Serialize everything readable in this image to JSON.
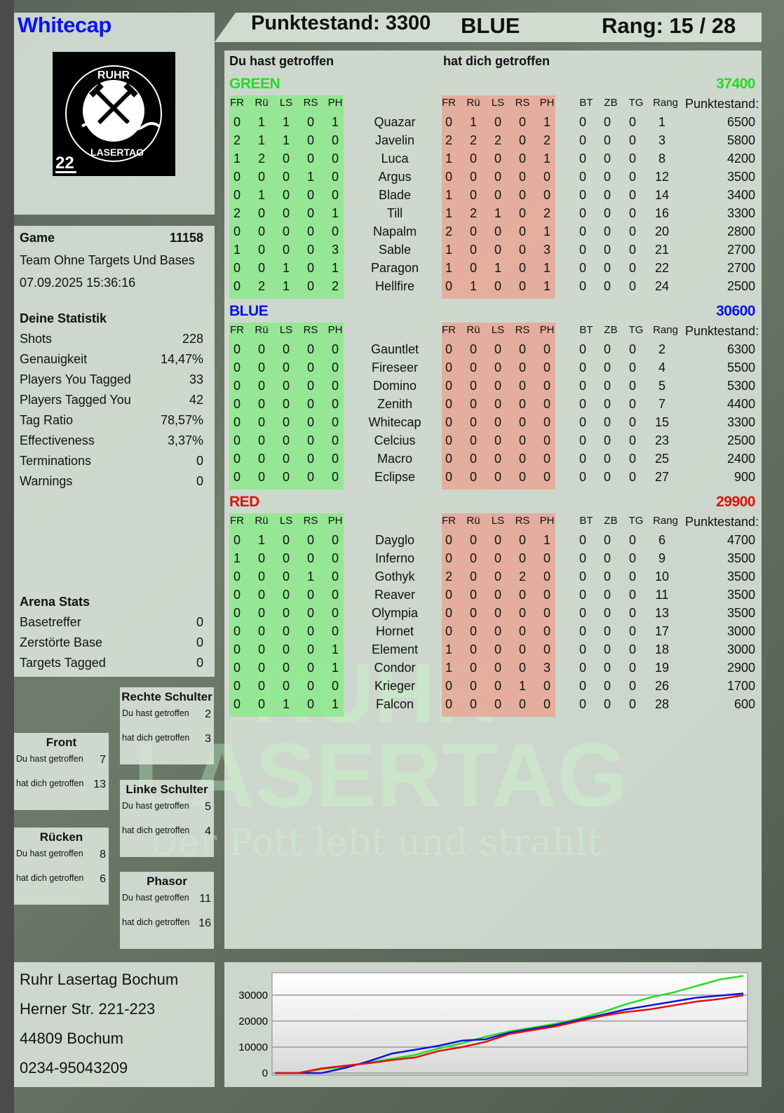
{
  "player": {
    "name": "Whitecap",
    "logo_text": "RUHR LASERTAG",
    "logo_number": "22"
  },
  "header": {
    "score_label": "Punktestand: 3300",
    "team": "BLUE",
    "rank_label": "Rang: 15 / 28"
  },
  "main": {
    "you_hit_label": "Du hast getroffen",
    "hit_you_label": "hat dich getroffen",
    "columns_left": [
      "FR",
      "Rü",
      "LS",
      "RS",
      "PH"
    ],
    "columns_right": [
      "FR",
      "Rü",
      "LS",
      "RS",
      "PH"
    ],
    "columns_extra": [
      "BT",
      "ZB",
      "TG",
      "Rang"
    ],
    "points_header": "Punktestand:"
  },
  "colors": {
    "green": "#22dd22",
    "blue": "#0a14d8",
    "red": "#e01010",
    "hit_green": "#8fe88f",
    "hit_red": "#e8a898"
  },
  "teams": [
    {
      "name": "GREEN",
      "score": "37400",
      "color": "#22dd22",
      "players": [
        {
          "left": [
            0,
            1,
            1,
            0,
            1
          ],
          "name": "Quazar",
          "right": [
            0,
            1,
            0,
            0,
            1
          ],
          "extra": [
            0,
            0,
            0,
            1
          ],
          "points": "6500"
        },
        {
          "left": [
            2,
            1,
            1,
            0,
            0
          ],
          "name": "Javelin",
          "right": [
            2,
            2,
            2,
            0,
            2
          ],
          "extra": [
            0,
            0,
            0,
            3
          ],
          "points": "5800"
        },
        {
          "left": [
            1,
            2,
            0,
            0,
            0
          ],
          "name": "Luca",
          "right": [
            1,
            0,
            0,
            0,
            1
          ],
          "extra": [
            0,
            0,
            0,
            8
          ],
          "points": "4200"
        },
        {
          "left": [
            0,
            0,
            0,
            1,
            0
          ],
          "name": "Argus",
          "right": [
            0,
            0,
            0,
            0,
            0
          ],
          "extra": [
            0,
            0,
            0,
            12
          ],
          "points": "3500"
        },
        {
          "left": [
            0,
            1,
            0,
            0,
            0
          ],
          "name": "Blade",
          "right": [
            1,
            0,
            0,
            0,
            0
          ],
          "extra": [
            0,
            0,
            0,
            14
          ],
          "points": "3400"
        },
        {
          "left": [
            2,
            0,
            0,
            0,
            1
          ],
          "name": "Till",
          "right": [
            1,
            2,
            1,
            0,
            2
          ],
          "extra": [
            0,
            0,
            0,
            16
          ],
          "points": "3300"
        },
        {
          "left": [
            0,
            0,
            0,
            0,
            0
          ],
          "name": "Napalm",
          "right": [
            2,
            0,
            0,
            0,
            1
          ],
          "extra": [
            0,
            0,
            0,
            20
          ],
          "points": "2800"
        },
        {
          "left": [
            1,
            0,
            0,
            0,
            3
          ],
          "name": "Sable",
          "right": [
            1,
            0,
            0,
            0,
            3
          ],
          "extra": [
            0,
            0,
            0,
            21
          ],
          "points": "2700"
        },
        {
          "left": [
            0,
            0,
            1,
            0,
            1
          ],
          "name": "Paragon",
          "right": [
            1,
            0,
            1,
            0,
            1
          ],
          "extra": [
            0,
            0,
            0,
            22
          ],
          "points": "2700"
        },
        {
          "left": [
            0,
            2,
            1,
            0,
            2
          ],
          "name": "Hellfire",
          "right": [
            0,
            1,
            0,
            0,
            1
          ],
          "extra": [
            0,
            0,
            0,
            24
          ],
          "points": "2500"
        }
      ]
    },
    {
      "name": "BLUE",
      "score": "30600",
      "color": "#0a14d8",
      "players": [
        {
          "left": [
            0,
            0,
            0,
            0,
            0
          ],
          "name": "Gauntlet",
          "right": [
            0,
            0,
            0,
            0,
            0
          ],
          "extra": [
            0,
            0,
            0,
            2
          ],
          "points": "6300"
        },
        {
          "left": [
            0,
            0,
            0,
            0,
            0
          ],
          "name": "Fireseer",
          "right": [
            0,
            0,
            0,
            0,
            0
          ],
          "extra": [
            0,
            0,
            0,
            4
          ],
          "points": "5500"
        },
        {
          "left": [
            0,
            0,
            0,
            0,
            0
          ],
          "name": "Domino",
          "right": [
            0,
            0,
            0,
            0,
            0
          ],
          "extra": [
            0,
            0,
            0,
            5
          ],
          "points": "5300"
        },
        {
          "left": [
            0,
            0,
            0,
            0,
            0
          ],
          "name": "Zenith",
          "right": [
            0,
            0,
            0,
            0,
            0
          ],
          "extra": [
            0,
            0,
            0,
            7
          ],
          "points": "4400"
        },
        {
          "left": [
            0,
            0,
            0,
            0,
            0
          ],
          "name": "Whitecap",
          "right": [
            0,
            0,
            0,
            0,
            0
          ],
          "extra": [
            0,
            0,
            0,
            15
          ],
          "points": "3300"
        },
        {
          "left": [
            0,
            0,
            0,
            0,
            0
          ],
          "name": "Celcius",
          "right": [
            0,
            0,
            0,
            0,
            0
          ],
          "extra": [
            0,
            0,
            0,
            23
          ],
          "points": "2500"
        },
        {
          "left": [
            0,
            0,
            0,
            0,
            0
          ],
          "name": "Macro",
          "right": [
            0,
            0,
            0,
            0,
            0
          ],
          "extra": [
            0,
            0,
            0,
            25
          ],
          "points": "2400"
        },
        {
          "left": [
            0,
            0,
            0,
            0,
            0
          ],
          "name": "Eclipse",
          "right": [
            0,
            0,
            0,
            0,
            0
          ],
          "extra": [
            0,
            0,
            0,
            27
          ],
          "points": "900"
        }
      ]
    },
    {
      "name": "RED",
      "score": "29900",
      "color": "#e01010",
      "players": [
        {
          "left": [
            0,
            1,
            0,
            0,
            0
          ],
          "name": "Dayglo",
          "right": [
            0,
            0,
            0,
            0,
            1
          ],
          "extra": [
            0,
            0,
            0,
            6
          ],
          "points": "4700"
        },
        {
          "left": [
            1,
            0,
            0,
            0,
            0
          ],
          "name": "Inferno",
          "right": [
            0,
            0,
            0,
            0,
            0
          ],
          "extra": [
            0,
            0,
            0,
            9
          ],
          "points": "3500"
        },
        {
          "left": [
            0,
            0,
            0,
            1,
            0
          ],
          "name": "Gothyk",
          "right": [
            2,
            0,
            0,
            2,
            0
          ],
          "extra": [
            0,
            0,
            0,
            10
          ],
          "points": "3500"
        },
        {
          "left": [
            0,
            0,
            0,
            0,
            0
          ],
          "name": "Reaver",
          "right": [
            0,
            0,
            0,
            0,
            0
          ],
          "extra": [
            0,
            0,
            0,
            11
          ],
          "points": "3500"
        },
        {
          "left": [
            0,
            0,
            0,
            0,
            0
          ],
          "name": "Olympia",
          "right": [
            0,
            0,
            0,
            0,
            0
          ],
          "extra": [
            0,
            0,
            0,
            13
          ],
          "points": "3500"
        },
        {
          "left": [
            0,
            0,
            0,
            0,
            0
          ],
          "name": "Hornet",
          "right": [
            0,
            0,
            0,
            0,
            0
          ],
          "extra": [
            0,
            0,
            0,
            17
          ],
          "points": "3000"
        },
        {
          "left": [
            0,
            0,
            0,
            0,
            1
          ],
          "name": "Element",
          "right": [
            1,
            0,
            0,
            0,
            0
          ],
          "extra": [
            0,
            0,
            0,
            18
          ],
          "points": "3000"
        },
        {
          "left": [
            0,
            0,
            0,
            0,
            1
          ],
          "name": "Condor",
          "right": [
            1,
            0,
            0,
            0,
            3
          ],
          "extra": [
            0,
            0,
            0,
            19
          ],
          "points": "2900"
        },
        {
          "left": [
            0,
            0,
            0,
            0,
            0
          ],
          "name": "Krieger",
          "right": [
            0,
            0,
            0,
            1,
            0
          ],
          "extra": [
            0,
            0,
            0,
            26
          ],
          "points": "1700"
        },
        {
          "left": [
            0,
            0,
            1,
            0,
            1
          ],
          "name": "Falcon",
          "right": [
            0,
            0,
            0,
            0,
            0
          ],
          "extra": [
            0,
            0,
            0,
            28
          ],
          "points": "600"
        }
      ]
    }
  ],
  "game": {
    "label": "Game",
    "number": "11158",
    "mode": "Team Ohne Targets Und Bases",
    "datetime": "07.09.2025 15:36:16"
  },
  "stats": {
    "title": "Deine Statistik",
    "rows": [
      {
        "label": "Shots",
        "value": "228"
      },
      {
        "label": "Genauigkeit",
        "value": "14,47%"
      },
      {
        "label": "Players You Tagged",
        "value": "33"
      },
      {
        "label": "Players Tagged You",
        "value": "42"
      },
      {
        "label": "Tag Ratio",
        "value": "78,57%"
      },
      {
        "label": "Effectiveness",
        "value": "3,37%"
      },
      {
        "label": "Terminations",
        "value": "0"
      },
      {
        "label": "Warnings",
        "value": "0"
      }
    ]
  },
  "arena": {
    "title": "Arena Stats",
    "rows": [
      {
        "label": "Basetreffer",
        "value": "0"
      },
      {
        "label": "Zerstörte Base",
        "value": "0"
      },
      {
        "label": "Targets Tagged",
        "value": "0"
      }
    ]
  },
  "hits": {
    "you_label": "Du hast getroffen",
    "them_label": "hat dich getroffen",
    "zones": [
      {
        "title": "Rechte Schulter",
        "you": "2",
        "them": "3"
      },
      {
        "title": "Front",
        "you": "7",
        "them": "13"
      },
      {
        "title": "Linke Schulter",
        "you": "5",
        "them": "4"
      },
      {
        "title": "Rücken",
        "you": "8",
        "them": "6"
      },
      {
        "title": "Phasor",
        "you": "11",
        "them": "16"
      }
    ]
  },
  "address": {
    "lines": [
      "Ruhr Lasertag Bochum",
      "Herner Str. 221-223",
      "44809 Bochum",
      "0234-95043209"
    ]
  },
  "watermark": {
    "line1": "RUHR",
    "line2": "LASERTAG",
    "line3": "Der Pott lebt und strahlt"
  },
  "chart_data": {
    "type": "line",
    "ylim": [
      -800,
      38600
    ],
    "yticks": [
      "0",
      "10000",
      "20000",
      "30000"
    ],
    "grid": true,
    "x": [
      0,
      5,
      10,
      15,
      20,
      25,
      30,
      35,
      40,
      45,
      50,
      55,
      60,
      65,
      70,
      75,
      80,
      85,
      90,
      95,
      100
    ],
    "series": [
      {
        "color": "#22dd22",
        "values": [
          0,
          0,
          1500,
          2500,
          4000,
          5500,
          7000,
          9500,
          11500,
          14000,
          16000,
          17500,
          19000,
          21000,
          23500,
          26500,
          29000,
          31000,
          33500,
          36000,
          37400
        ]
      },
      {
        "color": "#0a14d8",
        "values": [
          0,
          0,
          0,
          2000,
          4500,
          7500,
          9000,
          10500,
          12500,
          13000,
          15500,
          17000,
          18500,
          20500,
          22500,
          24500,
          26000,
          27500,
          29000,
          29800,
          30600
        ]
      },
      {
        "color": "#e01010",
        "values": [
          0,
          0,
          1800,
          2800,
          3800,
          5000,
          6000,
          8500,
          10000,
          12000,
          15000,
          16500,
          18000,
          20000,
          22000,
          23500,
          24500,
          26000,
          27500,
          28500,
          29900
        ]
      }
    ]
  }
}
